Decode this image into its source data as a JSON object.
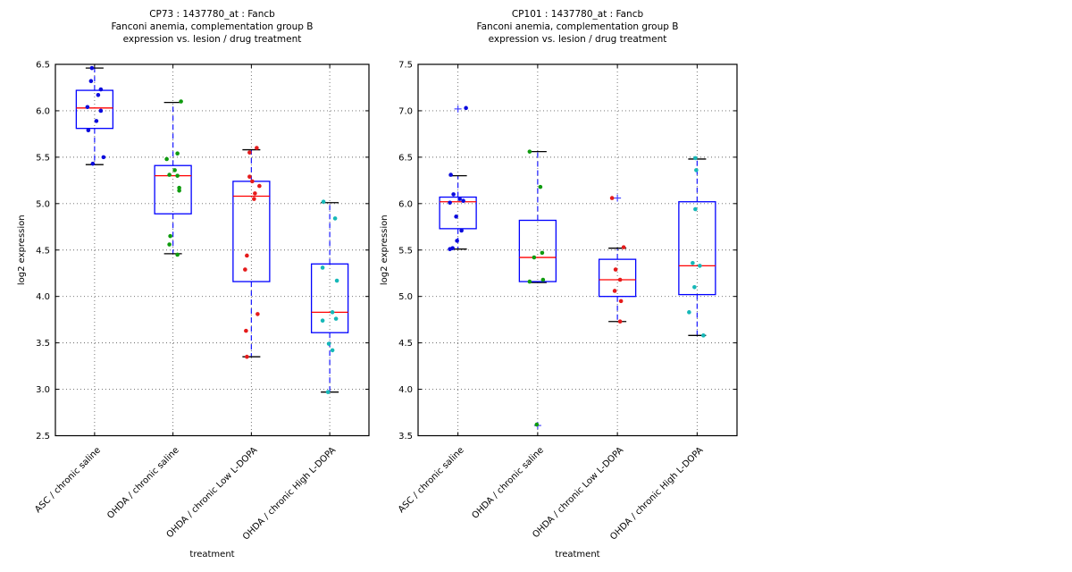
{
  "style": {
    "background": "#ffffff",
    "box_color": "#0000ff",
    "median_color": "#ff0000",
    "whisker_color": "#1a1aff",
    "cap_color": "#000000",
    "flier_color": "#4545ff",
    "grid_color": "#666666",
    "axis_color": "#000000",
    "text_color": "#000000"
  },
  "chart_data": [
    {
      "type": "boxplot",
      "title_lines": [
        "CP73 : 1437780_at : Fancb",
        "Fanconi anemia, complementation group B",
        "expression vs. lesion / drug treatment"
      ],
      "xlabel": "treatment",
      "ylabel": "log2 expression",
      "ylim": [
        2.5,
        6.5
      ],
      "yticks": [
        "2.5",
        "3.0",
        "3.5",
        "4.0",
        "4.5",
        "5.0",
        "5.5",
        "6.0",
        "6.5"
      ],
      "grid": "dotted",
      "legend": "none",
      "categories": [
        "ASC / chronic saline",
        "OHDA / chronic saline",
        "OHDA / chronic Low L-DOPA",
        "OHDA / chronic High L-DOPA"
      ],
      "groups": [
        {
          "label": "ASC / chronic saline",
          "color": "#0b0bdd",
          "whisker_low": 5.42,
          "q1": 5.81,
          "median": 6.03,
          "q3": 6.22,
          "whisker_high": 6.46,
          "points": [
            [
              6.46,
              -3
            ],
            [
              6.32,
              -4
            ],
            [
              6.23,
              7
            ],
            [
              6.17,
              4
            ],
            [
              6.04,
              -8
            ],
            [
              6.0,
              7
            ],
            [
              5.89,
              2
            ],
            [
              5.79,
              -7
            ],
            [
              5.5,
              10
            ],
            [
              5.43,
              -2
            ]
          ],
          "fliers": []
        },
        {
          "label": "OHDA / chronic saline",
          "color": "#0f9b0f",
          "whisker_low": 4.46,
          "q1": 4.89,
          "median": 5.3,
          "q3": 5.41,
          "whisker_high": 6.09,
          "points": [
            [
              6.1,
              9
            ],
            [
              5.54,
              5
            ],
            [
              5.48,
              -7
            ],
            [
              5.36,
              2
            ],
            [
              5.31,
              -4
            ],
            [
              5.3,
              5
            ],
            [
              5.17,
              7
            ],
            [
              5.14,
              7
            ],
            [
              4.65,
              -3
            ],
            [
              4.56,
              -4
            ],
            [
              4.45,
              5
            ]
          ],
          "fliers": []
        },
        {
          "label": "OHDA / chronic Low L-DOPA",
          "color": "#e51b1b",
          "whisker_low": 3.35,
          "q1": 4.16,
          "median": 5.08,
          "q3": 5.24,
          "whisker_high": 5.58,
          "points": [
            [
              5.6,
              6
            ],
            [
              5.55,
              -2
            ],
            [
              5.29,
              -2
            ],
            [
              5.24,
              1
            ],
            [
              5.19,
              9
            ],
            [
              5.11,
              4
            ],
            [
              5.05,
              3
            ],
            [
              4.44,
              -5
            ],
            [
              4.29,
              -7
            ],
            [
              3.81,
              7
            ],
            [
              3.63,
              -6
            ],
            [
              3.35,
              -5
            ]
          ],
          "fliers": []
        },
        {
          "label": "OHDA / chronic High L-DOPA",
          "color": "#16b8b8",
          "whisker_low": 2.97,
          "q1": 3.61,
          "median": 3.83,
          "q3": 4.35,
          "whisker_high": 5.01,
          "points": [
            [
              5.02,
              -7
            ],
            [
              4.84,
              6
            ],
            [
              4.31,
              -8
            ],
            [
              4.17,
              8
            ],
            [
              3.83,
              3
            ],
            [
              3.76,
              7
            ],
            [
              3.74,
              -8
            ],
            [
              3.49,
              -1
            ],
            [
              3.42,
              3
            ],
            [
              2.97,
              -2
            ]
          ],
          "fliers": []
        }
      ]
    },
    {
      "type": "boxplot",
      "title_lines": [
        "CP101 : 1437780_at : Fancb",
        "Fanconi anemia, complementation group B",
        "expression vs. lesion / drug treatment"
      ],
      "xlabel": "treatment",
      "ylabel": "log2 expression",
      "ylim": [
        3.5,
        7.5
      ],
      "yticks": [
        "3.5",
        "4.0",
        "4.5",
        "5.0",
        "5.5",
        "6.0",
        "6.5",
        "7.0",
        "7.5"
      ],
      "grid": "dotted",
      "legend": "none",
      "categories": [
        "ASC / chronic saline",
        "OHDA / chronic saline",
        "OHDA / chronic Low L-DOPA",
        "OHDA / chronic High L-DOPA"
      ],
      "groups": [
        {
          "label": "ASC / chronic saline",
          "color": "#0b0bdd",
          "whisker_low": 5.51,
          "q1": 5.73,
          "median": 6.02,
          "q3": 6.07,
          "whisker_high": 6.3,
          "points": [
            [
              7.03,
              9
            ],
            [
              6.31,
              -8
            ],
            [
              6.1,
              -5
            ],
            [
              6.05,
              2
            ],
            [
              6.03,
              6
            ],
            [
              6.01,
              -9
            ],
            [
              5.86,
              -2
            ],
            [
              5.71,
              4
            ],
            [
              5.6,
              -1
            ],
            [
              5.52,
              -6
            ],
            [
              5.51,
              -9
            ]
          ],
          "fliers": [
            7.02
          ]
        },
        {
          "label": "OHDA / chronic saline",
          "color": "#0f9b0f",
          "whisker_low": 5.15,
          "q1": 5.16,
          "median": 5.42,
          "q3": 5.82,
          "whisker_high": 6.56,
          "points": [
            [
              6.56,
              -9
            ],
            [
              6.18,
              3
            ],
            [
              5.47,
              5
            ],
            [
              5.42,
              -4
            ],
            [
              5.18,
              6
            ],
            [
              5.16,
              -9
            ],
            [
              3.62,
              -1
            ]
          ],
          "fliers": [
            3.61
          ]
        },
        {
          "label": "OHDA / chronic Low L-DOPA",
          "color": "#e51b1b",
          "whisker_low": 4.73,
          "q1": 5.0,
          "median": 5.18,
          "q3": 5.4,
          "whisker_high": 5.52,
          "points": [
            [
              6.06,
              -6
            ],
            [
              5.53,
              7
            ],
            [
              5.29,
              -2
            ],
            [
              5.18,
              3
            ],
            [
              5.06,
              -3
            ],
            [
              4.95,
              4
            ],
            [
              4.73,
              3
            ]
          ],
          "fliers": [
            6.06
          ]
        },
        {
          "label": "OHDA / chronic High L-DOPA",
          "color": "#16b8b8",
          "whisker_low": 4.58,
          "q1": 5.02,
          "median": 5.33,
          "q3": 6.02,
          "whisker_high": 6.48,
          "points": [
            [
              6.49,
              -2
            ],
            [
              6.36,
              -1
            ],
            [
              5.94,
              -2
            ],
            [
              5.36,
              -5
            ],
            [
              5.33,
              3
            ],
            [
              5.1,
              -3
            ],
            [
              4.83,
              -9
            ],
            [
              4.58,
              7
            ]
          ],
          "fliers": []
        }
      ]
    }
  ]
}
